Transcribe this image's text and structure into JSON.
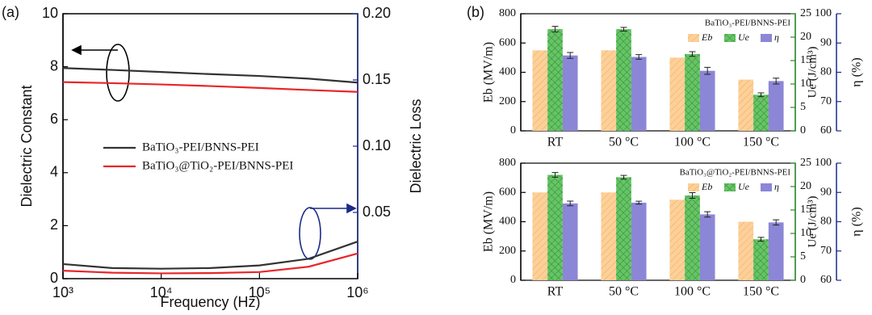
{
  "chart_data": [
    {
      "type": "line",
      "panel_label": "(a)",
      "x_label": "Frequency (Hz)",
      "y_label": "Dielectric Constant",
      "y2_label": "Dielectric Loss",
      "xscale": "log",
      "xlim": [
        1000,
        1000000
      ],
      "xticks": [
        {
          "value": 1000,
          "label": "10³"
        },
        {
          "value": 10000,
          "label": "10⁴"
        },
        {
          "value": 100000,
          "label": "10⁵"
        },
        {
          "value": 1000000,
          "label": "10⁶"
        }
      ],
      "ylim": [
        0,
        10
      ],
      "yticks": [
        0,
        2,
        4,
        6,
        8,
        10
      ],
      "y2lim": [
        0,
        0.2
      ],
      "y2ticks": [
        0.05,
        {
          "value": 0.1,
          "label": "0.10"
        },
        0.15,
        {
          "value": 0.2,
          "label": "0.20"
        }
      ],
      "x": [
        1000,
        3162,
        10000,
        31623,
        100000,
        316228,
        1000000
      ],
      "series": [
        {
          "name": "BaTiO₃-PEI/BNNS-PEI",
          "color": "#333333",
          "values": [
            7.95,
            7.88,
            7.8,
            7.72,
            7.65,
            7.55,
            7.4
          ]
        },
        {
          "name": "BaTiO₃@TiO₂-PEI/BNNS-PEI",
          "color": "#e8262a",
          "values": [
            7.42,
            7.38,
            7.33,
            7.27,
            7.2,
            7.12,
            7.05
          ]
        },
        {
          "color": "#333333",
          "axis": "y2",
          "values": [
            0.011,
            0.008,
            0.0075,
            0.008,
            0.01,
            0.015,
            0.028
          ]
        },
        {
          "color": "#e8262a",
          "axis": "y2",
          "values": [
            0.006,
            0.0045,
            0.004,
            0.0042,
            0.005,
            0.009,
            0.019
          ]
        }
      ]
    },
    {
      "type": "bar",
      "panel_label": "(b)",
      "annotation": "BaTiO₃-PEI/BNNS-PEI",
      "y_label": "Eb (MV/m)",
      "y2_label": "Ue (J/cm³)",
      "y3_label": "η (%)",
      "categories": [
        "RT",
        "50 °C",
        "100 °C",
        "150 °C"
      ],
      "ylim": [
        0,
        800
      ],
      "yticks": [
        0,
        200,
        400,
        600,
        800
      ],
      "y2lim": [
        0,
        25
      ],
      "y2ticks": [
        0,
        5,
        10,
        15,
        20,
        25
      ],
      "y3lim": [
        60,
        100
      ],
      "y3ticks": [
        60,
        70,
        80,
        90,
        100
      ],
      "series": [
        {
          "name": "Eb",
          "color": "#fcd09a",
          "values": [
            550,
            550,
            500,
            350
          ]
        },
        {
          "name": "Ue",
          "color": "#66c466",
          "axis": "y2",
          "values": [
            21.7,
            21.7,
            16.4,
            7.7
          ],
          "errors": [
            0.6,
            0.4,
            0.5,
            0.4
          ]
        },
        {
          "name": "η",
          "color": "#8c86d6",
          "axis": "y3",
          "values": [
            85.75,
            85.25,
            80.5,
            77
          ],
          "errors": [
            1,
            0.8,
            1.2,
            1
          ]
        }
      ]
    },
    {
      "type": "bar",
      "annotation": "BaTiO₃@TiO₂-PEI/BNNS-PEI",
      "y_label": "Eb (MV/m)",
      "y2_label": "Ue (J/cm³)",
      "y3_label": "η (%)",
      "categories": [
        "RT",
        "50 °C",
        "100 °C",
        "150 °C"
      ],
      "ylim": [
        0,
        800
      ],
      "yticks": [
        0,
        200,
        400,
        600,
        800
      ],
      "y2lim": [
        0,
        25
      ],
      "y2ticks": [
        0,
        5,
        10,
        15,
        20,
        25
      ],
      "y3lim": [
        60,
        100
      ],
      "y3ticks": [
        60,
        70,
        80,
        90,
        100
      ],
      "series": [
        {
          "name": "Eb",
          "color": "#fcd09a",
          "values": [
            600,
            600,
            550,
            400
          ]
        },
        {
          "name": "Ue",
          "color": "#66c466",
          "axis": "y2",
          "values": [
            22.5,
            22,
            18.1,
            8.75
          ],
          "errors": [
            0.5,
            0.4,
            0.6,
            0.4
          ]
        },
        {
          "name": "η",
          "color": "#8c86d6",
          "axis": "y3",
          "values": [
            86.25,
            86.5,
            82.5,
            79.75
          ],
          "errors": [
            0.8,
            0.5,
            0.9,
            0.9
          ]
        }
      ]
    }
  ]
}
